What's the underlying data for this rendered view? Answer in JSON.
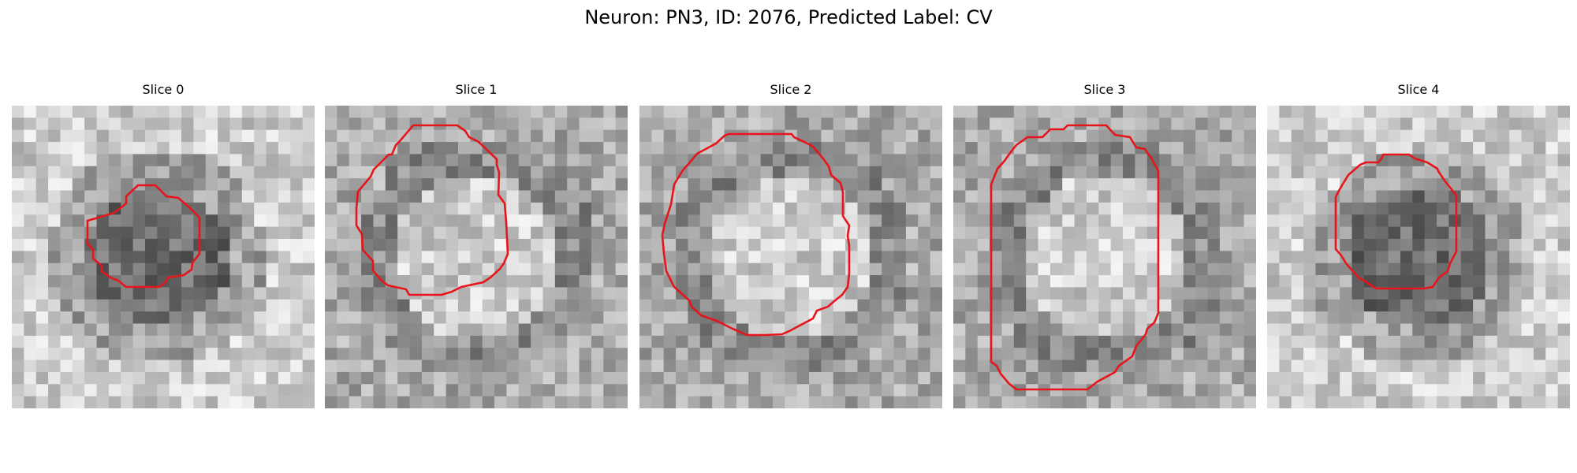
{
  "figure": {
    "title": "Neuron: PN3, ID: 2076, Predicted Label: CV"
  },
  "panels": [
    {
      "title": "Slice 0",
      "contour_color": "#e8141c",
      "shading": "dark-center"
    },
    {
      "title": "Slice 1",
      "contour_color": "#e8141c",
      "shading": "light-center"
    },
    {
      "title": "Slice 2",
      "contour_color": "#e8141c",
      "shading": "light-center"
    },
    {
      "title": "Slice 3",
      "contour_color": "#e8141c",
      "shading": "light-center"
    },
    {
      "title": "Slice 4",
      "contour_color": "#e8141c",
      "shading": "dark-center"
    }
  ]
}
